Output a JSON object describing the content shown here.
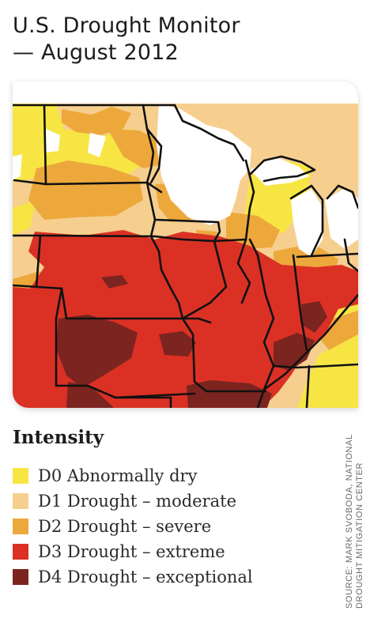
{
  "title": {
    "line1": "U.S. Drought Monitor",
    "line2": "— August 2012"
  },
  "map": {
    "colors": {
      "none": "#ffffff",
      "d0": "#f7e544",
      "d1": "#f6cf8f",
      "d2": "#eda83c",
      "d3": "#da3124",
      "d4": "#7b2420",
      "borders": "#111111"
    }
  },
  "legend": {
    "title": "Intensity",
    "items": [
      {
        "code": "D0",
        "label": "D0 Abnormally dry",
        "color": "#f7e544"
      },
      {
        "code": "D1",
        "label": "D1 Drought – moderate",
        "color": "#f6cf8f"
      },
      {
        "code": "D2",
        "label": "D2 Drought – severe",
        "color": "#eda83c"
      },
      {
        "code": "D3",
        "label": "D3 Drought – extreme",
        "color": "#da3124"
      },
      {
        "code": "D4",
        "label": "D4 Drought – exceptional",
        "color": "#7b2420"
      }
    ]
  },
  "source": {
    "line1": "SOURCE: MARK SVOBODA, NATIONAL",
    "line2": "DROUGHT MITIGATION CENTER"
  }
}
